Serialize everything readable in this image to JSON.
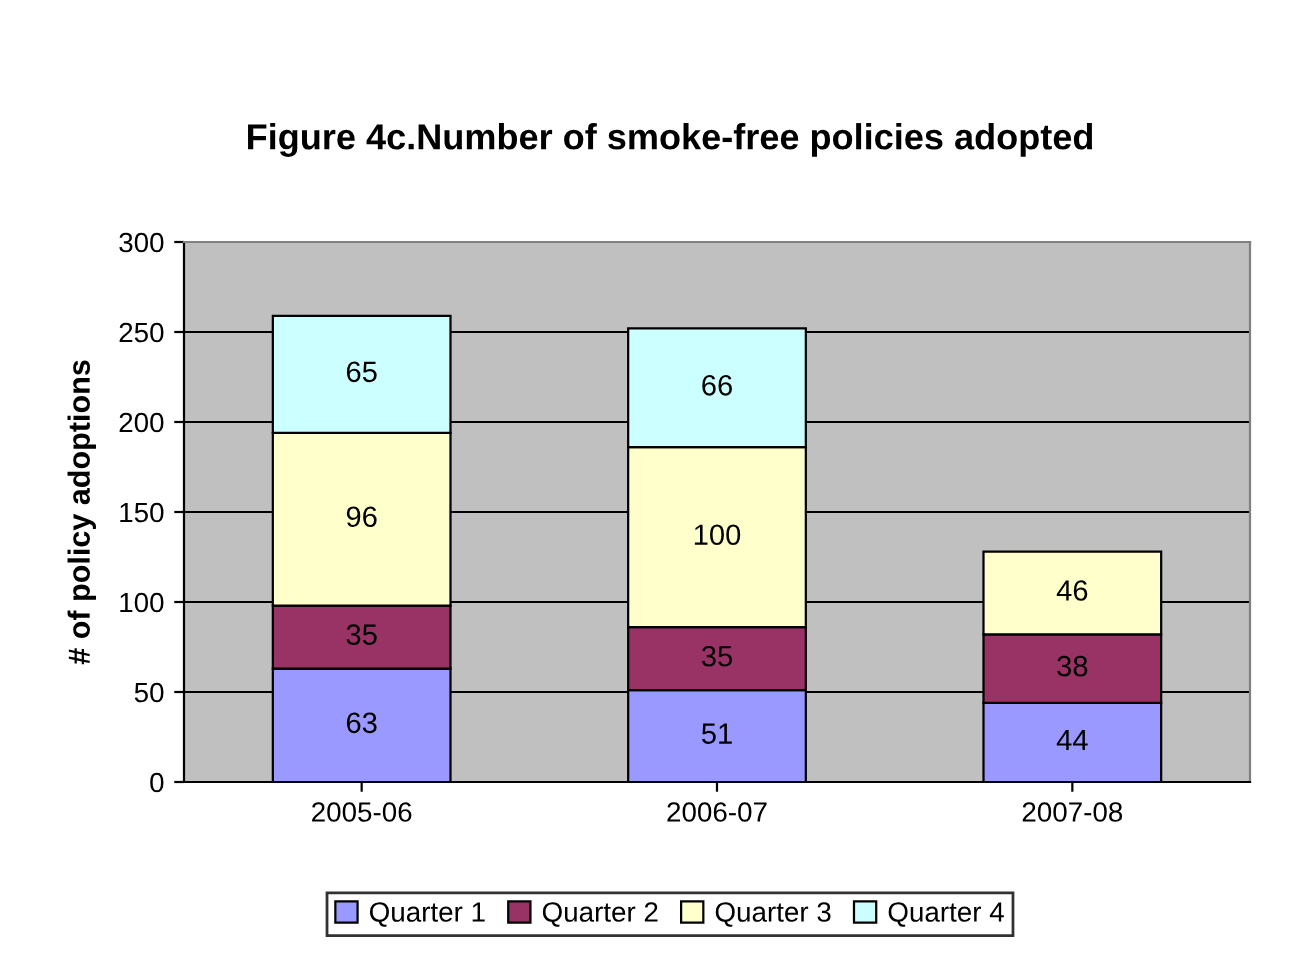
{
  "chart_data": {
    "type": "bar",
    "title": "Figure 4c.Number of smoke-free policies adopted",
    "ylabel": "# of policy adoptions",
    "categories": [
      "2005-06",
      "2006-07",
      "2007-08"
    ],
    "stacked": true,
    "data_labels": true,
    "ylim": [
      0,
      300
    ],
    "yticks": [
      0,
      50,
      100,
      150,
      200,
      250,
      300
    ],
    "grid": "y",
    "legend": "bottom",
    "series": [
      {
        "name": "Quarter 1",
        "color": "#9999ff",
        "values": [
          63,
          51,
          44
        ]
      },
      {
        "name": "Quarter 2",
        "color": "#993366",
        "values": [
          35,
          35,
          38
        ]
      },
      {
        "name": "Quarter 3",
        "color": "#ffffcc",
        "values": [
          96,
          100,
          46
        ]
      },
      {
        "name": "Quarter 4",
        "color": "#ccffff",
        "values": [
          65,
          66,
          null
        ]
      }
    ]
  }
}
